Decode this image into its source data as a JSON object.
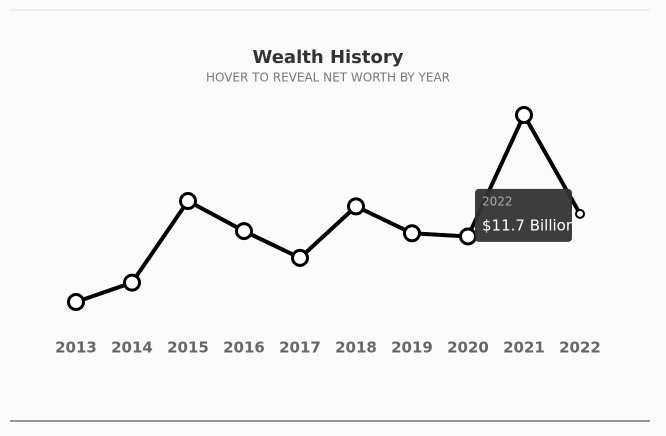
{
  "chart_data": {
    "type": "line",
    "title": "Wealth History",
    "subtitle": "HOVER TO REVEAL NET WORTH BY YEAR",
    "categories": [
      "2013",
      "2014",
      "2015",
      "2016",
      "2017",
      "2018",
      "2019",
      "2020",
      "2021",
      "2022"
    ],
    "values": [
      3.5,
      5.3,
      12.9,
      10.1,
      7.6,
      12.4,
      9.9,
      9.6,
      20.9,
      11.7
    ],
    "color": "#000000",
    "tooltip": {
      "category": "2022",
      "value_label": "$11.7 Billion"
    }
  }
}
